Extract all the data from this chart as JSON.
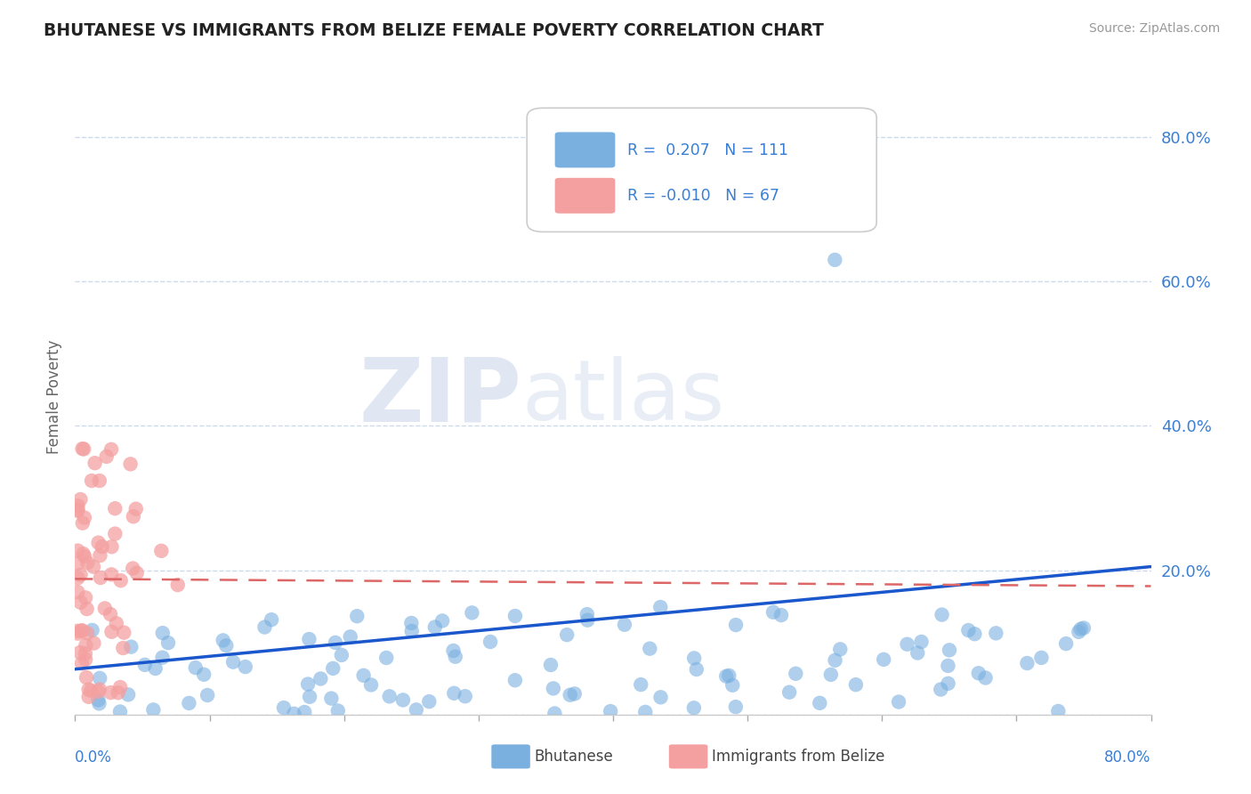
{
  "title": "BHUTANESE VS IMMIGRANTS FROM BELIZE FEMALE POVERTY CORRELATION CHART",
  "source": "Source: ZipAtlas.com",
  "ylabel": "Female Poverty",
  "ytick_vals": [
    0.0,
    0.2,
    0.4,
    0.6,
    0.8
  ],
  "ytick_labels": [
    "",
    "20.0%",
    "40.0%",
    "60.0%",
    "80.0%"
  ],
  "xlim": [
    0.0,
    0.8
  ],
  "ylim": [
    0.0,
    0.88
  ],
  "blue_color": "#7ab0e0",
  "pink_color": "#f4a0a0",
  "blue_line_color": "#1a56cc",
  "pink_line_color": "#dd6666",
  "grid_color": "#c8d8ea",
  "tick_label_color": "#3a7fd4",
  "watermark_color": "#dce8f5",
  "background_color": "#ffffff"
}
